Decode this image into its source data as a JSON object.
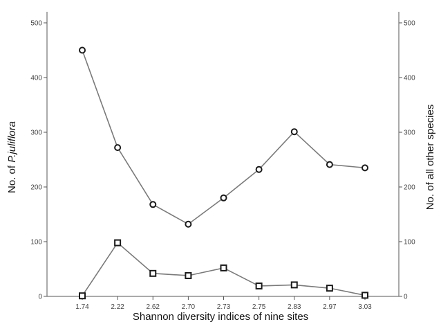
{
  "chart_data": {
    "type": "line",
    "title": "",
    "xlabel": "Shannon diversity indices of nine sites",
    "ylabel_left_prefix": "No. of ",
    "ylabel_left_species": "P.juliflora",
    "ylabel_right": "No. of all other species",
    "categories": [
      "1.74",
      "2.22",
      "2.62",
      "2.70",
      "2.73",
      "2.75",
      "2.83",
      "2.97",
      "3.03"
    ],
    "ylim": [
      0,
      500
    ],
    "yticks": [
      "0",
      "100",
      "200",
      "300",
      "400",
      "500"
    ],
    "y2ticks": [
      "0",
      "100",
      "200",
      "300",
      "400",
      "500"
    ],
    "grid": false,
    "series": [
      {
        "marker": "circle",
        "axis": "left",
        "values": [
          450,
          272,
          168,
          132,
          180,
          232,
          301,
          241,
          235
        ]
      },
      {
        "marker": "square",
        "axis": "right",
        "values": [
          1,
          98,
          42,
          38,
          52,
          19,
          21,
          15,
          2
        ]
      }
    ],
    "colors": {
      "line": "#7a7a7a",
      "marker_stroke": "#1a1a1a",
      "axis": "#555555"
    }
  }
}
